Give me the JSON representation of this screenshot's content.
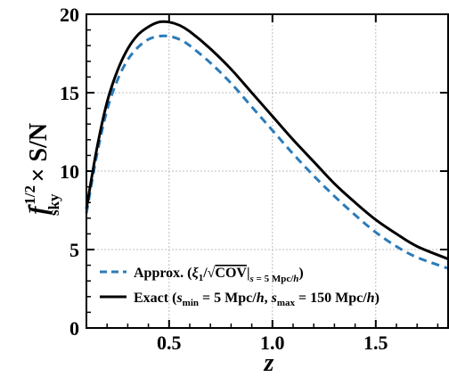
{
  "chart_data": {
    "type": "line",
    "xlabel": "z",
    "ylabel": "f_sky^-1/2 × S/N",
    "xlim": [
      0.1,
      1.85
    ],
    "ylim": [
      0,
      20
    ],
    "xticks": [
      0.5,
      1.0,
      1.5
    ],
    "xtick_labels": [
      "0.5",
      "1.0",
      "1.5"
    ],
    "yticks": [
      0,
      5,
      10,
      15,
      20
    ],
    "ytick_labels": [
      "0",
      "5",
      "10",
      "15",
      "20"
    ],
    "grid": true,
    "legend_position": "lower-left",
    "series": [
      {
        "name": "Approx. (ξ1/√COV|s=5 Mpc/h)",
        "style": "dashed",
        "color": "#2b7bb9",
        "x": [
          0.1,
          0.15,
          0.2,
          0.25,
          0.3,
          0.35,
          0.4,
          0.45,
          0.5,
          0.55,
          0.6,
          0.7,
          0.8,
          0.9,
          1.0,
          1.1,
          1.2,
          1.3,
          1.4,
          1.5,
          1.6,
          1.7,
          1.85
        ],
        "y": [
          7.3,
          11.0,
          13.9,
          15.8,
          17.1,
          17.9,
          18.4,
          18.6,
          18.6,
          18.4,
          18.0,
          16.9,
          15.6,
          14.1,
          12.6,
          11.1,
          9.7,
          8.4,
          7.2,
          6.1,
          5.2,
          4.5,
          3.8
        ]
      },
      {
        "name": "Exact (s_min = 5 Mpc/h, s_max = 150 Mpc/h)",
        "style": "solid",
        "color": "#000000",
        "x": [
          0.1,
          0.15,
          0.2,
          0.25,
          0.3,
          0.35,
          0.4,
          0.45,
          0.5,
          0.55,
          0.6,
          0.7,
          0.8,
          0.9,
          1.0,
          1.1,
          1.2,
          1.3,
          1.4,
          1.5,
          1.6,
          1.7,
          1.85
        ],
        "y": [
          7.6,
          11.4,
          14.4,
          16.4,
          17.8,
          18.7,
          19.2,
          19.5,
          19.5,
          19.3,
          18.9,
          17.8,
          16.5,
          15.0,
          13.5,
          12.0,
          10.6,
          9.2,
          8.0,
          6.9,
          6.0,
          5.2,
          4.4
        ]
      }
    ],
    "legend_entries": [
      "Approx. (ξ1/√COV|s=5 Mpc/h)",
      "Exact (smin = 5 Mpc/h, smax = 150 Mpc/h)"
    ]
  }
}
